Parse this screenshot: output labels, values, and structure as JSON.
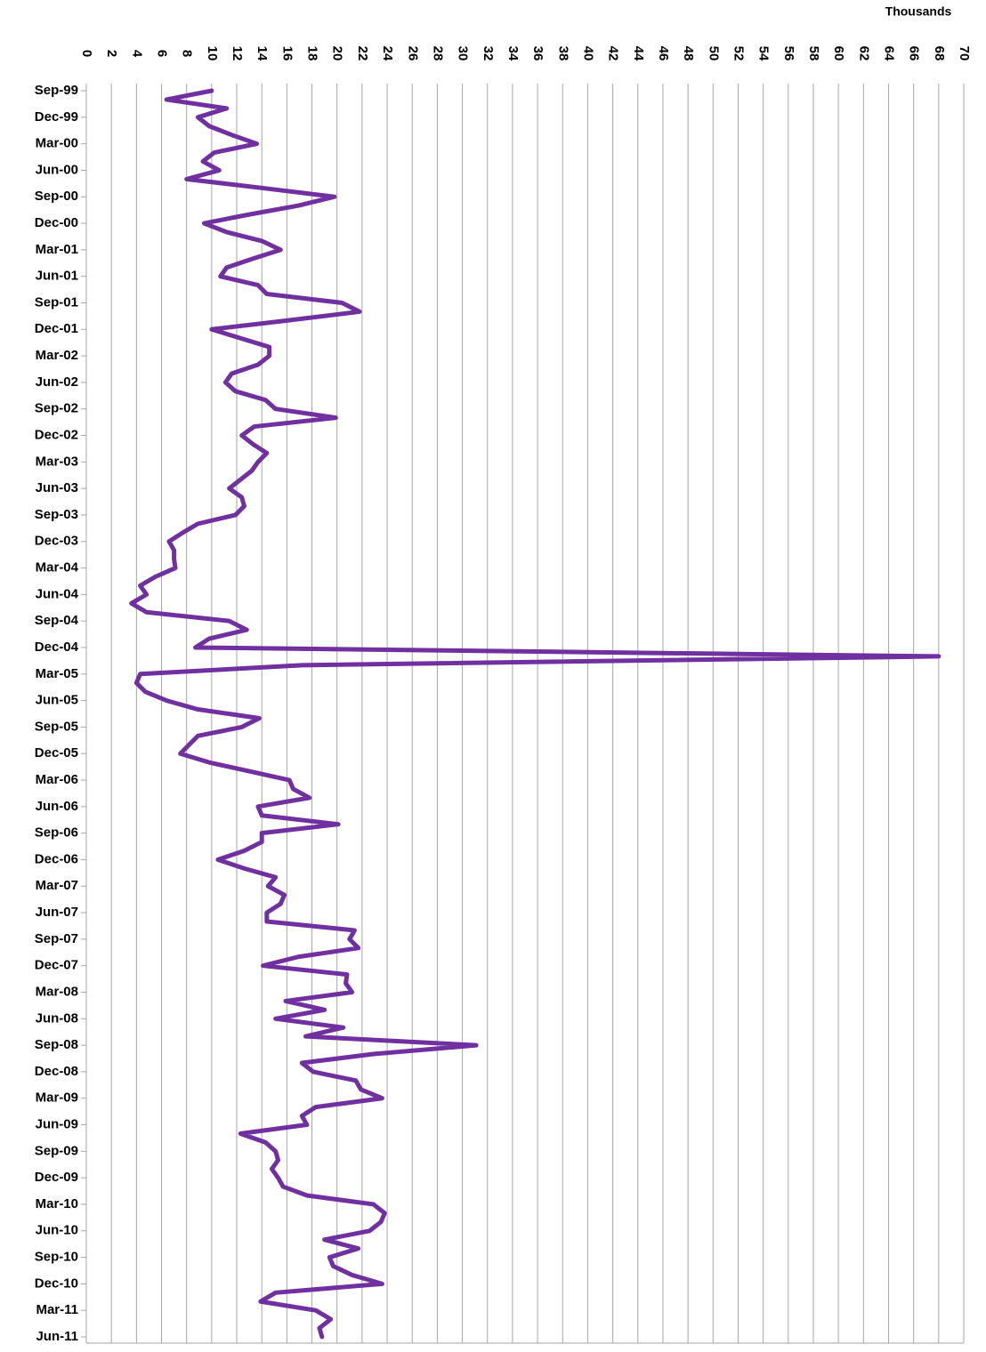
{
  "chart_data": {
    "type": "line",
    "orientation": "horizontal",
    "x_label": "Thousands",
    "categories": [
      "Sep-99",
      null,
      null,
      "Dec-99",
      null,
      null,
      "Mar-00",
      null,
      null,
      "Jun-00",
      null,
      null,
      "Sep-00",
      null,
      null,
      "Dec-00",
      null,
      null,
      "Mar-01",
      null,
      null,
      "Jun-01",
      null,
      null,
      "Sep-01",
      null,
      null,
      "Dec-01",
      null,
      null,
      "Mar-02",
      null,
      null,
      "Jun-02",
      null,
      null,
      "Sep-02",
      null,
      null,
      "Dec-02",
      null,
      null,
      "Mar-03",
      null,
      null,
      "Jun-03",
      null,
      null,
      "Sep-03",
      null,
      null,
      "Dec-03",
      null,
      null,
      "Mar-04",
      null,
      null,
      "Jun-04",
      null,
      null,
      "Sep-04",
      null,
      null,
      "Dec-04",
      null,
      null,
      "Mar-05",
      null,
      null,
      "Jun-05",
      null,
      null,
      "Sep-05",
      null,
      null,
      "Dec-05",
      null,
      null,
      "Mar-06",
      null,
      null,
      "Jun-06",
      null,
      null,
      "Sep-06",
      null,
      null,
      "Dec-06",
      null,
      null,
      "Mar-07",
      null,
      null,
      "Jun-07",
      null,
      null,
      "Sep-07",
      null,
      null,
      "Dec-07",
      null,
      null,
      "Mar-08",
      null,
      null,
      "Jun-08",
      null,
      null,
      "Sep-08",
      null,
      null,
      "Dec-08",
      null,
      null,
      "Mar-09",
      null,
      null,
      "Jun-09",
      null,
      null,
      "Sep-09",
      null,
      null,
      "Dec-09",
      null,
      null,
      "Mar-10",
      null,
      null,
      "Jun-10",
      null,
      null,
      "Sep-10",
      null,
      null,
      "Dec-10",
      null,
      null,
      "Mar-11",
      null,
      null,
      "Jun-11"
    ],
    "values": [
      10,
      6.4,
      11.2,
      8.9,
      9.8,
      11.6,
      13.6,
      10.2,
      9.3,
      10.6,
      8,
      14,
      19.8,
      16.9,
      13,
      9.4,
      11.2,
      14,
      15.5,
      13.3,
      11.2,
      10.7,
      13.7,
      14.4,
      20.4,
      21.8,
      16,
      10,
      12.3,
      14.6,
      14.6,
      13.7,
      11.6,
      11.1,
      11.9,
      14.3,
      15.1,
      19.9,
      13.4,
      12.4,
      13.3,
      14.4,
      13.7,
      13.2,
      12.3,
      11.4,
      12.4,
      12.6,
      11.9,
      8.9,
      7.7,
      6.6,
      7,
      7,
      7.1,
      5.5,
      4.3,
      4.8,
      3.6,
      4.8,
      11.4,
      12.8,
      9.8,
      8.7,
      68,
      17.2,
      4.3,
      4,
      4.7,
      6.4,
      8.9,
      13.8,
      12.4,
      8.9,
      8.2,
      7.5,
      9.8,
      13,
      16.2,
      16.5,
      17.8,
      13.7,
      14,
      20.1,
      14,
      14,
      12.6,
      10.5,
      12.6,
      15.1,
      14.5,
      15.8,
      15.5,
      14.4,
      14.4,
      21.4,
      21,
      21.7,
      16.9,
      14.1,
      20.8,
      20.7,
      21.2,
      15.9,
      19,
      15.1,
      20.5,
      17.5,
      31.1,
      22.9,
      17.2,
      18.1,
      21.5,
      21.9,
      23.6,
      18.3,
      17.2,
      17.6,
      12.3,
      14.3,
      15.1,
      15.3,
      14.8,
      15.3,
      15.7,
      17.6,
      22.9,
      23.8,
      23.5,
      22.6,
      19,
      21.7,
      19.4,
      19.7,
      21.2,
      23.6,
      15.1,
      13.9,
      18.3,
      19.5,
      18.6,
      18.8
    ],
    "color": "#7030a0",
    "xlim": [
      0,
      70
    ],
    "xticks": [
      0,
      2,
      4,
      6,
      8,
      10,
      12,
      14,
      16,
      18,
      20,
      22,
      24,
      26,
      28,
      30,
      32,
      34,
      36,
      38,
      40,
      42,
      44,
      46,
      48,
      50,
      52,
      54,
      56,
      58,
      60,
      62,
      64,
      66,
      68,
      70
    ],
    "grid": true
  }
}
